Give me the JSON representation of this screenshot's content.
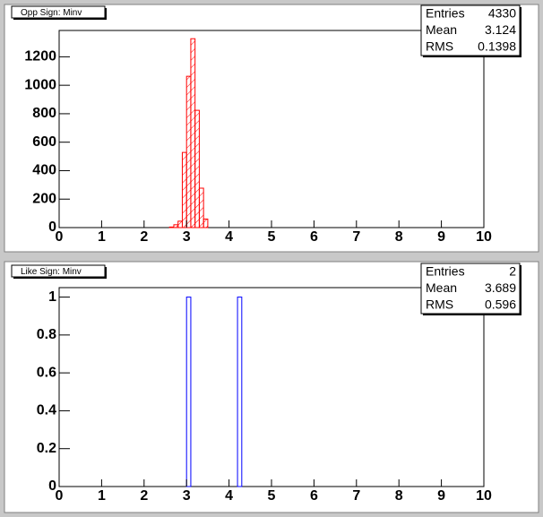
{
  "chart_data": [
    {
      "type": "histogram",
      "title": "Opp Sign: Minv",
      "bins": [
        2.6,
        2.7,
        2.8,
        2.9,
        3.0,
        3.1,
        3.2,
        3.3,
        3.4,
        3.5
      ],
      "values": [
        4,
        20,
        45,
        528,
        1063,
        1327,
        824,
        277,
        60
      ],
      "color": "#ff0000",
      "hatch": true,
      "xlim": [
        0,
        10
      ],
      "xticks": [
        0,
        1,
        2,
        3,
        4,
        5,
        6,
        7,
        8,
        9,
        10
      ],
      "ylim": [
        0,
        1385
      ],
      "yticks": [
        0,
        200,
        400,
        600,
        800,
        1000,
        1200
      ],
      "stats": {
        "labels": [
          "Entries",
          "Mean",
          "RMS"
        ],
        "values": [
          4330,
          3.124,
          0.1398
        ]
      }
    },
    {
      "type": "histogram",
      "title": "Like Sign: Minv",
      "bins": [
        3.0,
        3.1,
        3.2,
        3.3,
        3.4,
        3.5,
        3.6,
        3.7,
        3.8,
        3.9,
        4.0,
        4.1,
        4.2,
        4.3
      ],
      "values": [
        1,
        0,
        0,
        0,
        0,
        0,
        0,
        0,
        0,
        0,
        0,
        0,
        1
      ],
      "color": "#0000ff",
      "hatch": false,
      "xlim": [
        0,
        10
      ],
      "xticks": [
        0,
        1,
        2,
        3,
        4,
        5,
        6,
        7,
        8,
        9,
        10
      ],
      "ylim": [
        0,
        1.05
      ],
      "yticks": [
        0,
        0.2,
        0.4,
        0.6,
        0.8,
        1
      ],
      "stats": {
        "labels": [
          "Entries",
          "Mean",
          "RMS"
        ],
        "values": [
          2,
          3.689,
          0.596
        ]
      }
    }
  ]
}
